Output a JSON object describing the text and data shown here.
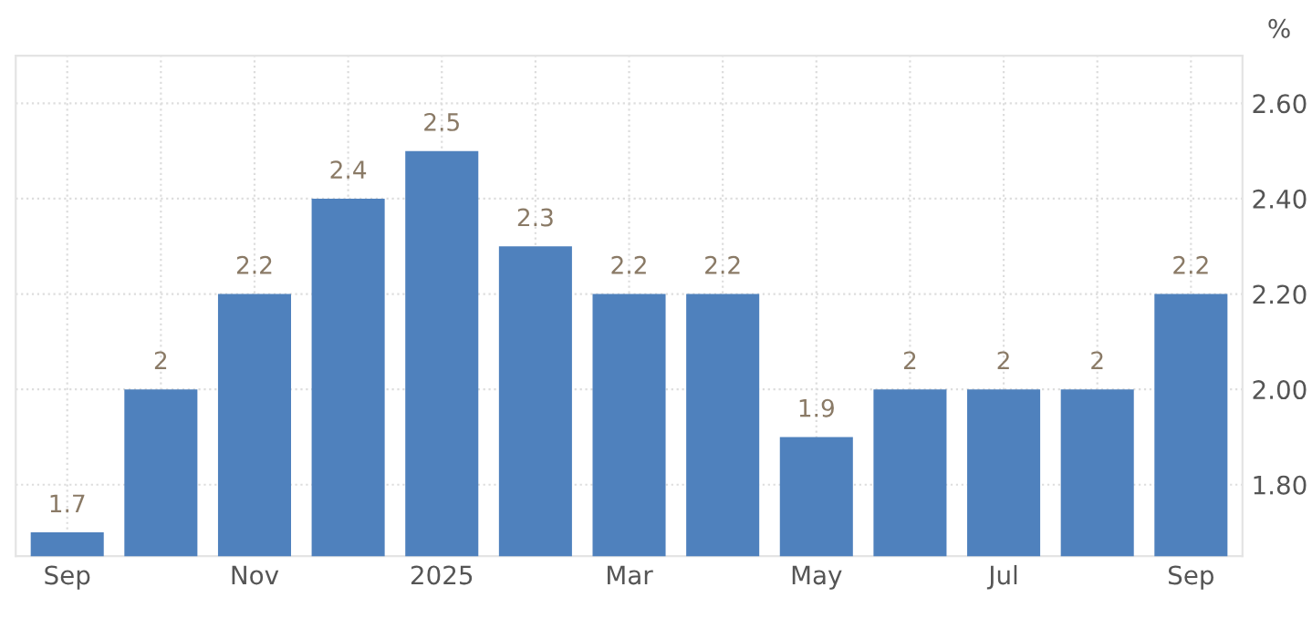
{
  "chart_data": {
    "type": "bar",
    "ylabel": "%",
    "categories": [
      "Sep",
      null,
      "Nov",
      null,
      "2025",
      null,
      "Mar",
      null,
      "May",
      null,
      "Jul",
      null,
      "Sep"
    ],
    "values": [
      1.7,
      2,
      2.2,
      2.4,
      2.5,
      2.3,
      2.2,
      2.2,
      1.9,
      2,
      2,
      2,
      2.2
    ],
    "color": "#4f81bd",
    "data_labels": true,
    "ylim": [
      1.65,
      2.7
    ],
    "yticks": [
      {
        "value": 1.8,
        "label": "1.80"
      },
      {
        "value": 2.0,
        "label": "2.00"
      },
      {
        "value": 2.2,
        "label": "2.20"
      },
      {
        "value": 2.4,
        "label": "2.40"
      },
      {
        "value": 2.6,
        "label": "2.60"
      }
    ],
    "grid": true
  }
}
